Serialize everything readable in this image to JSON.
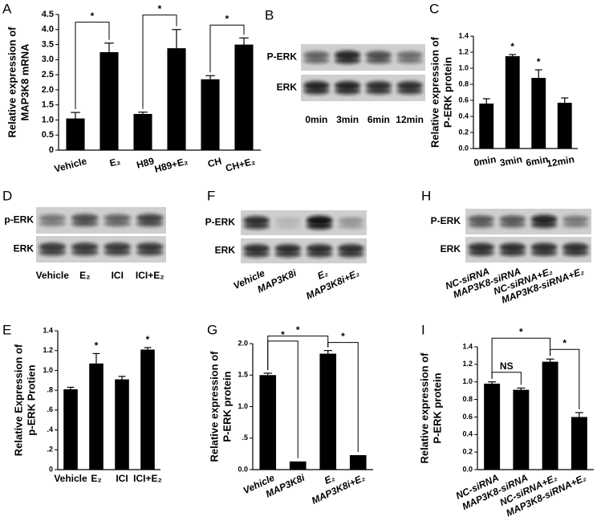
{
  "chart_data": [
    {
      "type": "bar",
      "panel": "A",
      "ylabel": [
        "Relative expression of",
        "MAP3K8 mRNA"
      ],
      "categories": [
        "Vehicle",
        "E₂",
        "H89",
        "H89+E₂",
        "CH",
        "CH+E₂"
      ],
      "values": [
        1.05,
        3.25,
        1.2,
        3.38,
        2.35,
        3.5
      ],
      "errors": [
        0.2,
        0.3,
        0.06,
        0.62,
        0.12,
        0.22
      ],
      "color": "#000000",
      "ylim": [
        0,
        4.5
      ],
      "yticks": [
        0,
        0.5,
        {
          "value": 1,
          "label": "1.0"
        },
        1.5,
        {
          "value": 2,
          "label": "2.0"
        },
        2.5,
        {
          "value": 3,
          "label": "3.0"
        },
        3.5,
        {
          "value": 4,
          "label": "4.0"
        },
        4.5
      ],
      "significance_brackets": [
        "*",
        "*",
        "*"
      ]
    },
    {
      "type": "bar",
      "panel": "C",
      "ylabel": [
        "Relative expression of",
        "P-ERK protein"
      ],
      "categories": [
        "0min",
        "3min",
        "6min",
        "12min"
      ],
      "values": [
        0.56,
        1.15,
        0.88,
        0.57
      ],
      "errors": [
        0.06,
        0.02,
        0.1,
        0.06
      ],
      "color": "#000000",
      "ylim": [
        0,
        1.4
      ],
      "yticks": [
        {
          "value": 0,
          "label": "0.0"
        },
        0.2,
        0.4,
        0.6,
        0.8,
        {
          "value": 1,
          "label": "1.0"
        },
        1.2,
        1.4
      ],
      "significance": [
        null,
        "*",
        "*",
        null
      ]
    },
    {
      "type": "bar",
      "panel": "E",
      "ylabel": [
        "Relative Expression of",
        "p-ERK Protien"
      ],
      "categories": [
        "Vehicle",
        "E₂",
        "ICI",
        "ICI+E₂"
      ],
      "values": [
        0.81,
        1.07,
        0.91,
        1.21
      ],
      "errors": [
        0.02,
        0.1,
        0.03,
        0.02
      ],
      "color": "#000000",
      "ylim": [
        0,
        1.4
      ],
      "yticks": [
        0,
        {
          "value": 0.2,
          "label": ".2"
        },
        {
          "value": 0.4,
          "label": ".4"
        },
        {
          "value": 0.6,
          "label": ".6"
        },
        {
          "value": 0.8,
          "label": ".8"
        },
        {
          "value": 1,
          "label": "1.0"
        },
        1.2,
        1.4
      ],
      "significance": [
        null,
        "*",
        null,
        "*"
      ]
    },
    {
      "type": "bar",
      "panel": "G",
      "ylabel": [
        "Relative expression of",
        "P-ERK protein"
      ],
      "categories": [
        "Vehicle",
        "MAP3K8i",
        "E₂",
        "MAP3K8i+E₂"
      ],
      "values": [
        1.5,
        0.13,
        1.84,
        0.23
      ],
      "errors": [
        0.03,
        null,
        0.05,
        null
      ],
      "color": "#000000",
      "ylim": [
        0,
        2
      ],
      "yticks": [
        {
          "value": 0,
          "label": "0.0"
        },
        {
          "value": 0.5,
          "label": ".5"
        },
        {
          "value": 1,
          "label": "1.0"
        },
        1.5,
        {
          "value": 2,
          "label": "2.0"
        }
      ],
      "significance_brackets": [
        "*",
        "*",
        "*"
      ]
    },
    {
      "type": "bar",
      "panel": "I",
      "ylabel": [
        "Relative expression of",
        "P-ERK protein"
      ],
      "categories": [
        "NC-siRNA",
        "MAP3K8-siRNA",
        "NC-siRNA+E₂",
        "MAP3K8-siRNA+E₂"
      ],
      "values": [
        0.98,
        0.91,
        1.23,
        0.6
      ],
      "errors": [
        0.02,
        0.02,
        0.03,
        0.05
      ],
      "color": "#000000",
      "ylim": [
        0,
        1.4
      ],
      "yticks": [
        {
          "value": 0,
          "label": "0.0"
        },
        0.2,
        0.4,
        0.6,
        0.8,
        {
          "value": 1,
          "label": "1.0"
        },
        1.2,
        1.4
      ],
      "significance_brackets": [
        "NS",
        "*",
        "*"
      ]
    }
  ],
  "blots": [
    {
      "panel": "B",
      "rows": [
        "P-ERK",
        "ERK"
      ],
      "lanes": [
        "0min",
        "3min",
        "6min",
        "12min"
      ]
    },
    {
      "panel": "D",
      "rows": [
        "p-ERK",
        "ERK"
      ],
      "lanes": [
        "Vehicle",
        "E₂",
        "ICI",
        "ICI+E₂"
      ]
    },
    {
      "panel": "F",
      "rows": [
        "P-ERK",
        "ERK"
      ],
      "lanes": [
        "Vehicle",
        "MAP3K8i",
        "E₂",
        "MAP3K8i+E₂"
      ]
    },
    {
      "panel": "H",
      "rows": [
        "P-ERK",
        "ERK"
      ],
      "lanes": [
        "NC-siRNA",
        "MAP3K8-siRNA",
        "NC-siRNA+E₂",
        "MAP3K8-siRNA+E₂"
      ]
    }
  ]
}
